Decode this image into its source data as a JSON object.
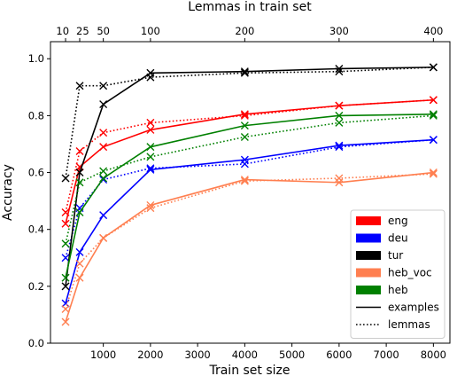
{
  "chart_data": {
    "type": "line",
    "xlabel": "Train set size",
    "ylabel": "Accuracy",
    "top_xlabel": "Lemmas in train set",
    "xlim": [
      -120,
      8350
    ],
    "ylim": [
      0.0,
      1.06
    ],
    "x_ticks": [
      1000,
      2000,
      3000,
      4000,
      5000,
      6000,
      7000,
      8000
    ],
    "y_ticks": [
      0.0,
      0.2,
      0.4,
      0.6,
      0.8,
      1.0
    ],
    "top_ticks": [
      {
        "label": "10",
        "x": 200
      },
      {
        "label": "25",
        "x": 500
      },
      {
        "label": "50",
        "x": 1000
      },
      {
        "label": "100",
        "x": 2000
      },
      {
        "label": "200",
        "x": 4000
      },
      {
        "label": "300",
        "x": 6000
      },
      {
        "label": "400",
        "x": 8000
      }
    ],
    "x": [
      200,
      500,
      1000,
      2000,
      4000,
      6000,
      8000
    ],
    "series": [
      {
        "name": "eng",
        "color": "#ff0000",
        "examples": [
          0.42,
          0.62,
          0.69,
          0.75,
          0.805,
          0.835,
          0.855
        ],
        "lemmas": [
          0.46,
          0.675,
          0.74,
          0.775,
          0.8,
          0.835,
          0.855
        ]
      },
      {
        "name": "deu",
        "color": "#0000ff",
        "examples": [
          0.14,
          0.32,
          0.45,
          0.61,
          0.645,
          0.695,
          0.715
        ],
        "lemmas": [
          0.3,
          0.475,
          0.575,
          0.615,
          0.63,
          0.69,
          0.715
        ]
      },
      {
        "name": "tur",
        "color": "#000000",
        "examples": [
          0.2,
          0.6,
          0.84,
          0.95,
          0.955,
          0.965,
          0.97
        ],
        "lemmas": [
          0.58,
          0.905,
          0.905,
          0.935,
          0.95,
          0.955,
          0.97
        ]
      },
      {
        "name": "heb_voc",
        "color": "#ff7f50",
        "examples": [
          0.075,
          0.23,
          0.37,
          0.485,
          0.575,
          0.565,
          0.6
        ],
        "lemmas": [
          0.12,
          0.28,
          0.37,
          0.475,
          0.57,
          0.58,
          0.595
        ]
      },
      {
        "name": "heb",
        "color": "#008000",
        "examples": [
          0.23,
          0.46,
          0.58,
          0.69,
          0.765,
          0.8,
          0.805
        ],
        "lemmas": [
          0.35,
          0.565,
          0.605,
          0.655,
          0.725,
          0.775,
          0.8
        ]
      }
    ],
    "legend": {
      "placement": "lower-right",
      "entries": [
        {
          "label": "eng",
          "kind": "patch",
          "color": "#ff0000"
        },
        {
          "label": "deu",
          "kind": "patch",
          "color": "#0000ff"
        },
        {
          "label": "tur",
          "kind": "patch",
          "color": "#000000"
        },
        {
          "label": "heb_voc",
          "kind": "patch",
          "color": "#ff7f50"
        },
        {
          "label": "heb",
          "kind": "patch",
          "color": "#008000"
        },
        {
          "label": "examples",
          "kind": "line",
          "style": "solid",
          "color": "#000000"
        },
        {
          "label": "lemmas",
          "kind": "line",
          "style": "dotted",
          "color": "#000000"
        }
      ]
    }
  }
}
